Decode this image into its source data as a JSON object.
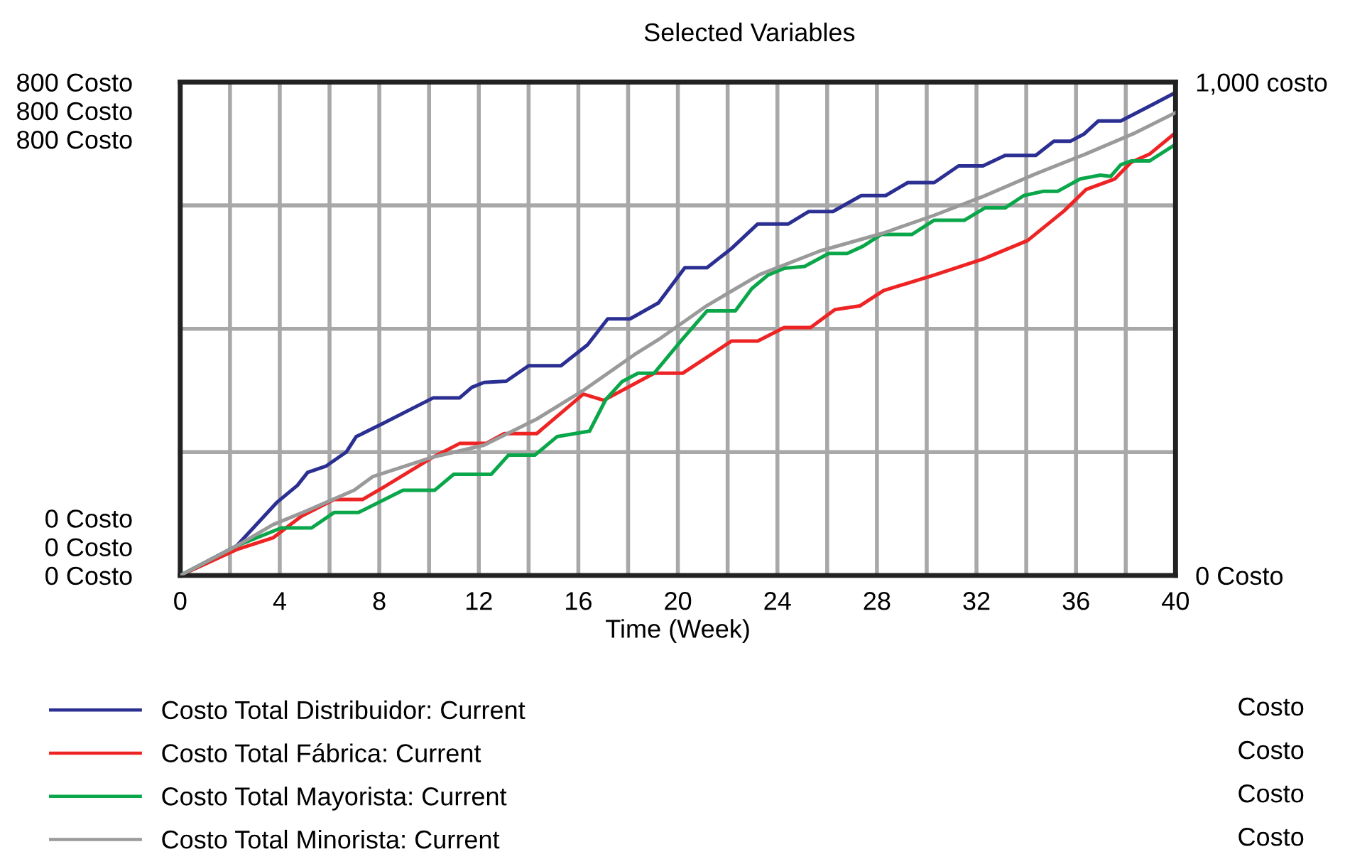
{
  "chart_data": {
    "type": "line",
    "title": "Selected Variables",
    "xlabel": "Time (Week)",
    "xlim": [
      0,
      40
    ],
    "xticks": [
      0,
      {
        "value": 2,
        "label": null
      },
      4,
      {
        "value": 6,
        "label": null
      },
      8,
      {
        "value": 10,
        "label": null
      },
      12,
      {
        "value": 14,
        "label": null
      },
      16,
      {
        "value": 18,
        "label": null
      },
      20,
      {
        "value": 22,
        "label": null
      },
      24,
      {
        "value": 26,
        "label": null
      },
      28,
      {
        "value": 30,
        "label": null
      },
      32,
      {
        "value": 34,
        "label": null
      },
      36,
      {
        "value": 38,
        "label": null
      },
      40
    ],
    "ylim": [
      0,
      800
    ],
    "yticks": [
      {
        "value": 0,
        "label": "0 Costo"
      },
      {
        "value": 200,
        "label": null
      },
      {
        "value": 400,
        "label": null
      },
      {
        "value": 600,
        "label": null
      },
      {
        "value": 800,
        "label": "800 Costo"
      }
    ],
    "y2lim": [
      0,
      1000
    ],
    "y2ticks": [
      {
        "value": 0,
        "label": "0 Costo"
      },
      {
        "value": 1000,
        "label": "1,000 costo"
      }
    ],
    "grid": true,
    "legend": "bottom",
    "marker": "none",
    "line_style": "solid",
    "annotations": [
      "Costo",
      "Costo",
      "Costo",
      "Costo"
    ],
    "series": [
      {
        "name": "Costo Total Distribuidor: Current",
        "color": "#2b2f92",
        "x": [
          0,
          2.27,
          3.9,
          4.71,
          5.12,
          5.85,
          6.67,
          7.07,
          8.13,
          10.17,
          11.23,
          11.72,
          12.21,
          13.1,
          14.0,
          15.3,
          16.37,
          17.18,
          18.08,
          19.22,
          20.28,
          21.17,
          22.15,
          23.21,
          24.44,
          25.25,
          26.23,
          27.37,
          28.35,
          29.24,
          30.3,
          31.28,
          32.26,
          33.15,
          34.38,
          35.11,
          35.77,
          36.33,
          36.9,
          37.8,
          39.1,
          40
        ],
        "values": [
          0,
          48,
          119,
          146,
          167,
          177,
          200,
          225,
          246,
          288,
          288,
          305,
          313,
          315,
          340,
          340,
          374,
          416,
          416,
          442,
          499,
          499,
          530,
          570,
          570,
          590,
          590,
          616,
          616,
          637,
          637,
          664,
          664,
          681,
          681,
          704,
          704,
          716,
          737,
          737,
          764,
          783
        ]
      },
      {
        "name": "Costo Total Fábrica: Current",
        "color": "#ee2424",
        "x": [
          0,
          2.27,
          3.73,
          4.87,
          6.18,
          7.32,
          8.13,
          10.17,
          11.23,
          12.29,
          13.02,
          14.33,
          16.2,
          17.02,
          19.05,
          20.2,
          22.15,
          23.21,
          24.27,
          25.33,
          26.31,
          27.31,
          28.27,
          30.3,
          32.26,
          34.05,
          35.52,
          36.41,
          37.56,
          38.22,
          38.95,
          40
        ],
        "values": [
          0,
          42,
          61,
          96,
          123,
          123,
          142,
          192,
          214,
          214,
          230,
          230,
          294,
          284,
          328,
          328,
          380,
          380,
          402,
          402,
          431,
          437,
          462,
          487,
          513,
          543,
          591,
          626,
          643,
          670,
          683,
          718
        ]
      },
      {
        "name": "Costo Total Mayorista: Current",
        "color": "#0aa64a",
        "x": [
          0,
          2.27,
          4.06,
          5.28,
          6.18,
          7.16,
          8.95,
          10.22,
          10.99,
          12.5,
          13.19,
          14.25,
          15.14,
          16.45,
          17.1,
          17.75,
          18.4,
          19.05,
          20.2,
          21.17,
          22.31,
          22.97,
          23.62,
          24.27,
          25.09,
          26.06,
          26.8,
          27.45,
          28.18,
          29.41,
          30.3,
          31.52,
          32.34,
          33.15,
          33.9,
          34.7,
          35.27,
          36.17,
          36.98,
          37.39,
          37.8,
          38.22,
          38.95,
          40
        ],
        "values": [
          0,
          48,
          77,
          77,
          102,
          102,
          138,
          138,
          164,
          164,
          195,
          195,
          225,
          234,
          285,
          314,
          328,
          328,
          384,
          429,
          429,
          465,
          487,
          498,
          501,
          522,
          522,
          534,
          553,
          553,
          576,
          576,
          596,
          596,
          616,
          623,
          623,
          643,
          649,
          647,
          666,
          672,
          672,
          699
        ]
      },
      {
        "name": "Costo Total Minorista: Current",
        "color": "#9a9a9a",
        "axis": "y2",
        "x": [
          0,
          2.27,
          3.73,
          5.04,
          7.0,
          7.73,
          10.17,
          12.21,
          14.33,
          16.2,
          18.24,
          19.22,
          21.17,
          23.29,
          25.73,
          28.26,
          30.3,
          32.26,
          34.38,
          36.33,
          38.29,
          40
        ],
        "values": [
          0,
          60,
          103,
          130,
          173,
          200,
          240,
          264,
          317,
          375,
          447,
          478,
          547,
          610,
          658,
          694,
          730,
          768,
          814,
          853,
          895,
          938
        ]
      }
    ]
  }
}
